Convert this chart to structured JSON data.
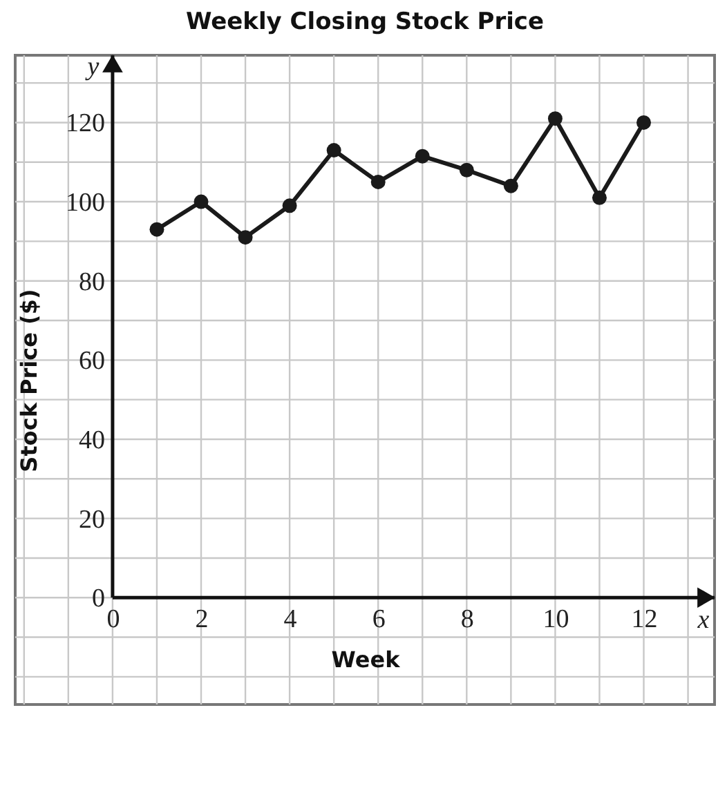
{
  "chart_data": {
    "type": "line",
    "title": "Weekly Closing Stock Price",
    "xlabel": "Week",
    "ylabel": "Stock Price ($)",
    "x": [
      1,
      2,
      3,
      4,
      5,
      6,
      7,
      8,
      9,
      10,
      11,
      12
    ],
    "series": [
      {
        "color": "#1a1a1a",
        "values": [
          93,
          100,
          91,
          99,
          113,
          105,
          111.5,
          108,
          104,
          121,
          101,
          120
        ]
      }
    ],
    "xlim": [
      -2.2,
      13.6
    ],
    "ylim": [
      -27,
      137
    ],
    "xticks": [
      {
        "value": -2,
        "label": null
      },
      {
        "value": -1,
        "label": null
      },
      0,
      {
        "value": 1,
        "label": null
      },
      2,
      {
        "value": 3,
        "label": null
      },
      4,
      {
        "value": 5,
        "label": null
      },
      6,
      {
        "value": 7,
        "label": null
      },
      8,
      {
        "value": 9,
        "label": null
      },
      10,
      {
        "value": 11,
        "label": null
      },
      12,
      {
        "value": 13,
        "label": null
      }
    ],
    "yticks": [
      {
        "value": -20,
        "label": null
      },
      {
        "value": -10,
        "label": null
      },
      0,
      {
        "value": 10,
        "label": null
      },
      20,
      {
        "value": 30,
        "label": null
      },
      40,
      {
        "value": 50,
        "label": null
      },
      60,
      {
        "value": 70,
        "label": null
      },
      80,
      {
        "value": 90,
        "label": null
      },
      100,
      {
        "value": 110,
        "label": null
      },
      120,
      {
        "value": 130,
        "label": null
      }
    ],
    "annotations": [
      "x",
      "y"
    ],
    "grid": true,
    "marker": "circle",
    "line_style": "solid"
  }
}
